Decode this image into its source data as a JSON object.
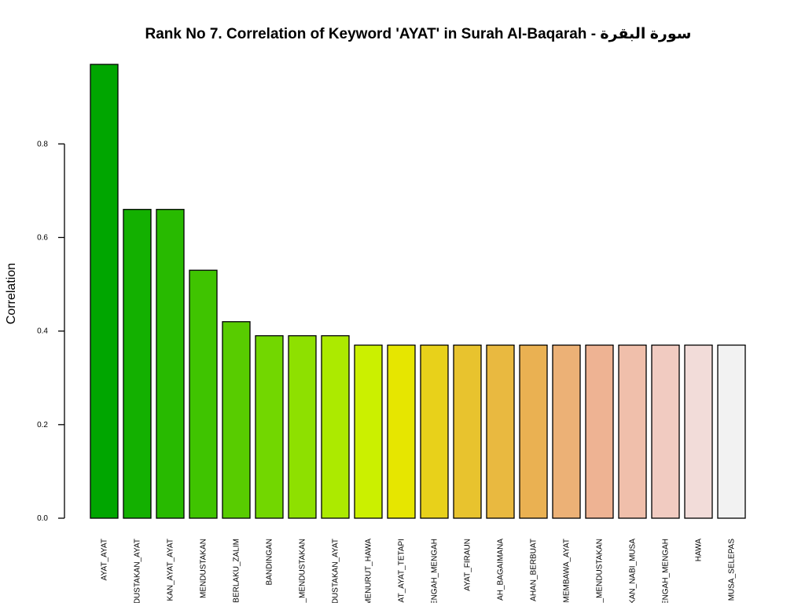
{
  "chart_data": {
    "type": "bar",
    "title": "Rank No 7. Correlation of Keyword 'AYAT' in Surah Al-Baqarah - سورة البقرة",
    "xlabel": "",
    "ylabel": "Correlation",
    "ylim": [
      0,
      0.97
    ],
    "yticks": [
      "0.0",
      "0.2",
      "0.4",
      "0.6",
      "0.8"
    ],
    "grid": false,
    "legend": "none",
    "categories": [
      "AYAT_AYAT",
      "DUSTAKAN_AYAT",
      "KAN_AYAT_AYAT",
      "MENDUSTAKAN",
      "BERLAKU_ZALIM",
      "BANDINGAN",
      "_MENDUSTAKAN",
      "DUSTAKAN_AYAT",
      "MENURUT_HAWA",
      "AT_AYAT_TETAPI",
      "ENGAH_MENGAH",
      "AYAT_FIRAUN",
      "AH_BAGAIMANA",
      "AHAN_BERBUAT",
      "MEMBAWA_AYAT",
      "_MENDUSTAKAN",
      "KAN_NABI_MUSA",
      "ENGAH_MENGAH",
      "HAWA",
      "MUSA_SELEPAS"
    ],
    "values": [
      0.97,
      0.66,
      0.66,
      0.53,
      0.42,
      0.39,
      0.39,
      0.39,
      0.37,
      0.37,
      0.37,
      0.37,
      0.37,
      0.37,
      0.37,
      0.37,
      0.37,
      0.37,
      0.37,
      0.37
    ],
    "colors": [
      "#00a600",
      "#13b000",
      "#28ba00",
      "#3fc400",
      "#58cc00",
      "#72d700",
      "#8ee000",
      "#acea00",
      "#cbf000",
      "#e6e600",
      "#e8d11a",
      "#e8c32e",
      "#e9b940",
      "#eab152",
      "#ecb176",
      "#eeb393",
      "#f0bfab",
      "#f1cbc1",
      "#f2dcd9",
      "#f2f2f2"
    ]
  }
}
